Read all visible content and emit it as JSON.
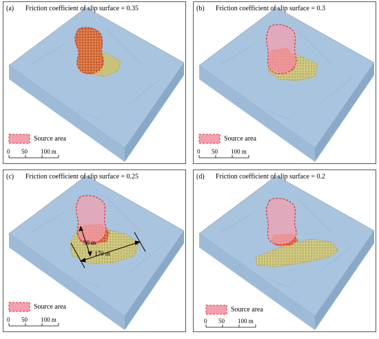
{
  "panels": [
    {
      "label": "(a)",
      "title": "Friction coefficient of slip surface = 0.35",
      "friction": 0.35
    },
    {
      "label": "(b)",
      "title": "Friction coefficient of slip surface = 0.3",
      "friction": 0.3
    },
    {
      "label": "(c)",
      "title": "Friction coefficient of slip surface = 0.25",
      "friction": 0.25
    },
    {
      "label": "(d)",
      "title": "Friction coefficient of slip surface = 0.2",
      "friction": 0.2
    }
  ],
  "legend": {
    "source_area": "Source area"
  },
  "scale_bar": {
    "ticks": [
      "0",
      "50",
      "100 m"
    ]
  },
  "dimensions": {
    "width_label": "90 m",
    "length_label": "170 m"
  },
  "colors": {
    "terrain": "#a9c4de",
    "terrain_side": "#8fb0cf",
    "source_fill": "#f3a0b0",
    "source_stroke": "#e03030",
    "deposit": "#c9c27a",
    "deposit_source": "#e27a4a"
  }
}
